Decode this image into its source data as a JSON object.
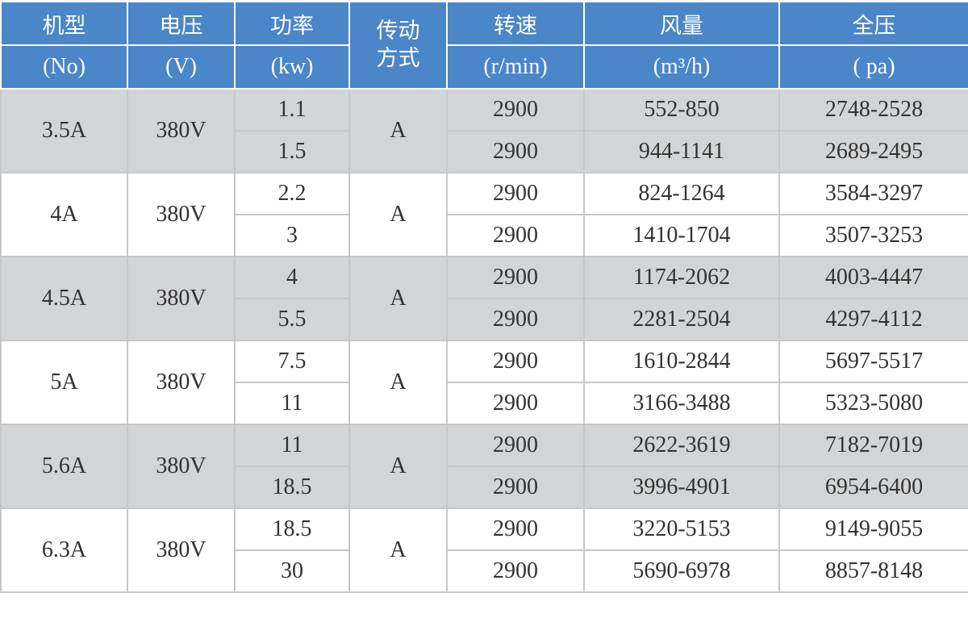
{
  "header": {
    "model": {
      "label": "机型",
      "unit": "(No)"
    },
    "voltage": {
      "label": "电压",
      "unit": "(V)"
    },
    "power": {
      "label": "功率",
      "unit": "(kw)"
    },
    "drive": {
      "label_line1": "传动",
      "label_line2": "方式"
    },
    "speed": {
      "label": "转速",
      "unit": "(r/min)"
    },
    "airflow": {
      "label": "风量",
      "unit": "(m³/h)"
    },
    "pressure": {
      "label": "全压",
      "unit": "( pa)"
    }
  },
  "colors": {
    "header_bg": "#4a86c8",
    "shaded_row": "#d3d4d6",
    "border": "#c6c7c9"
  },
  "groups": [
    {
      "model": "3.5A",
      "voltage": "380V",
      "drive": "A",
      "rows": [
        {
          "power": "1.1",
          "speed": "2900",
          "airflow": "552-850",
          "pressure": "2748-2528"
        },
        {
          "power": "1.5",
          "speed": "2900",
          "airflow": "944-1141",
          "pressure": "2689-2495"
        }
      ]
    },
    {
      "model": "4A",
      "voltage": "380V",
      "drive": "A",
      "rows": [
        {
          "power": "2.2",
          "speed": "2900",
          "airflow": "824-1264",
          "pressure": "3584-3297"
        },
        {
          "power": "3",
          "speed": "2900",
          "airflow": "1410-1704",
          "pressure": "3507-3253"
        }
      ]
    },
    {
      "model": "4.5A",
      "voltage": "380V",
      "drive": "A",
      "rows": [
        {
          "power": "4",
          "speed": "2900",
          "airflow": "1174-2062",
          "pressure": "4003-4447"
        },
        {
          "power": "5.5",
          "speed": "2900",
          "airflow": "2281-2504",
          "pressure": "4297-4112"
        }
      ]
    },
    {
      "model": "5A",
      "voltage": "380V",
      "drive": "A",
      "rows": [
        {
          "power": "7.5",
          "speed": "2900",
          "airflow": "1610-2844",
          "pressure": "5697-5517"
        },
        {
          "power": "11",
          "speed": "2900",
          "airflow": "3166-3488",
          "pressure": "5323-5080"
        }
      ]
    },
    {
      "model": "5.6A",
      "voltage": "380V",
      "drive": "A",
      "rows": [
        {
          "power": "11",
          "speed": "2900",
          "airflow": "2622-3619",
          "pressure": "7182-7019"
        },
        {
          "power": "18.5",
          "speed": "2900",
          "airflow": "3996-4901",
          "pressure": "6954-6400"
        }
      ]
    },
    {
      "model": "6.3A",
      "voltage": "380V",
      "drive": "A",
      "rows": [
        {
          "power": "18.5",
          "speed": "2900",
          "airflow": "3220-5153",
          "pressure": "9149-9055"
        },
        {
          "power": "30",
          "speed": "2900",
          "airflow": "5690-6978",
          "pressure": "8857-8148"
        }
      ]
    }
  ]
}
